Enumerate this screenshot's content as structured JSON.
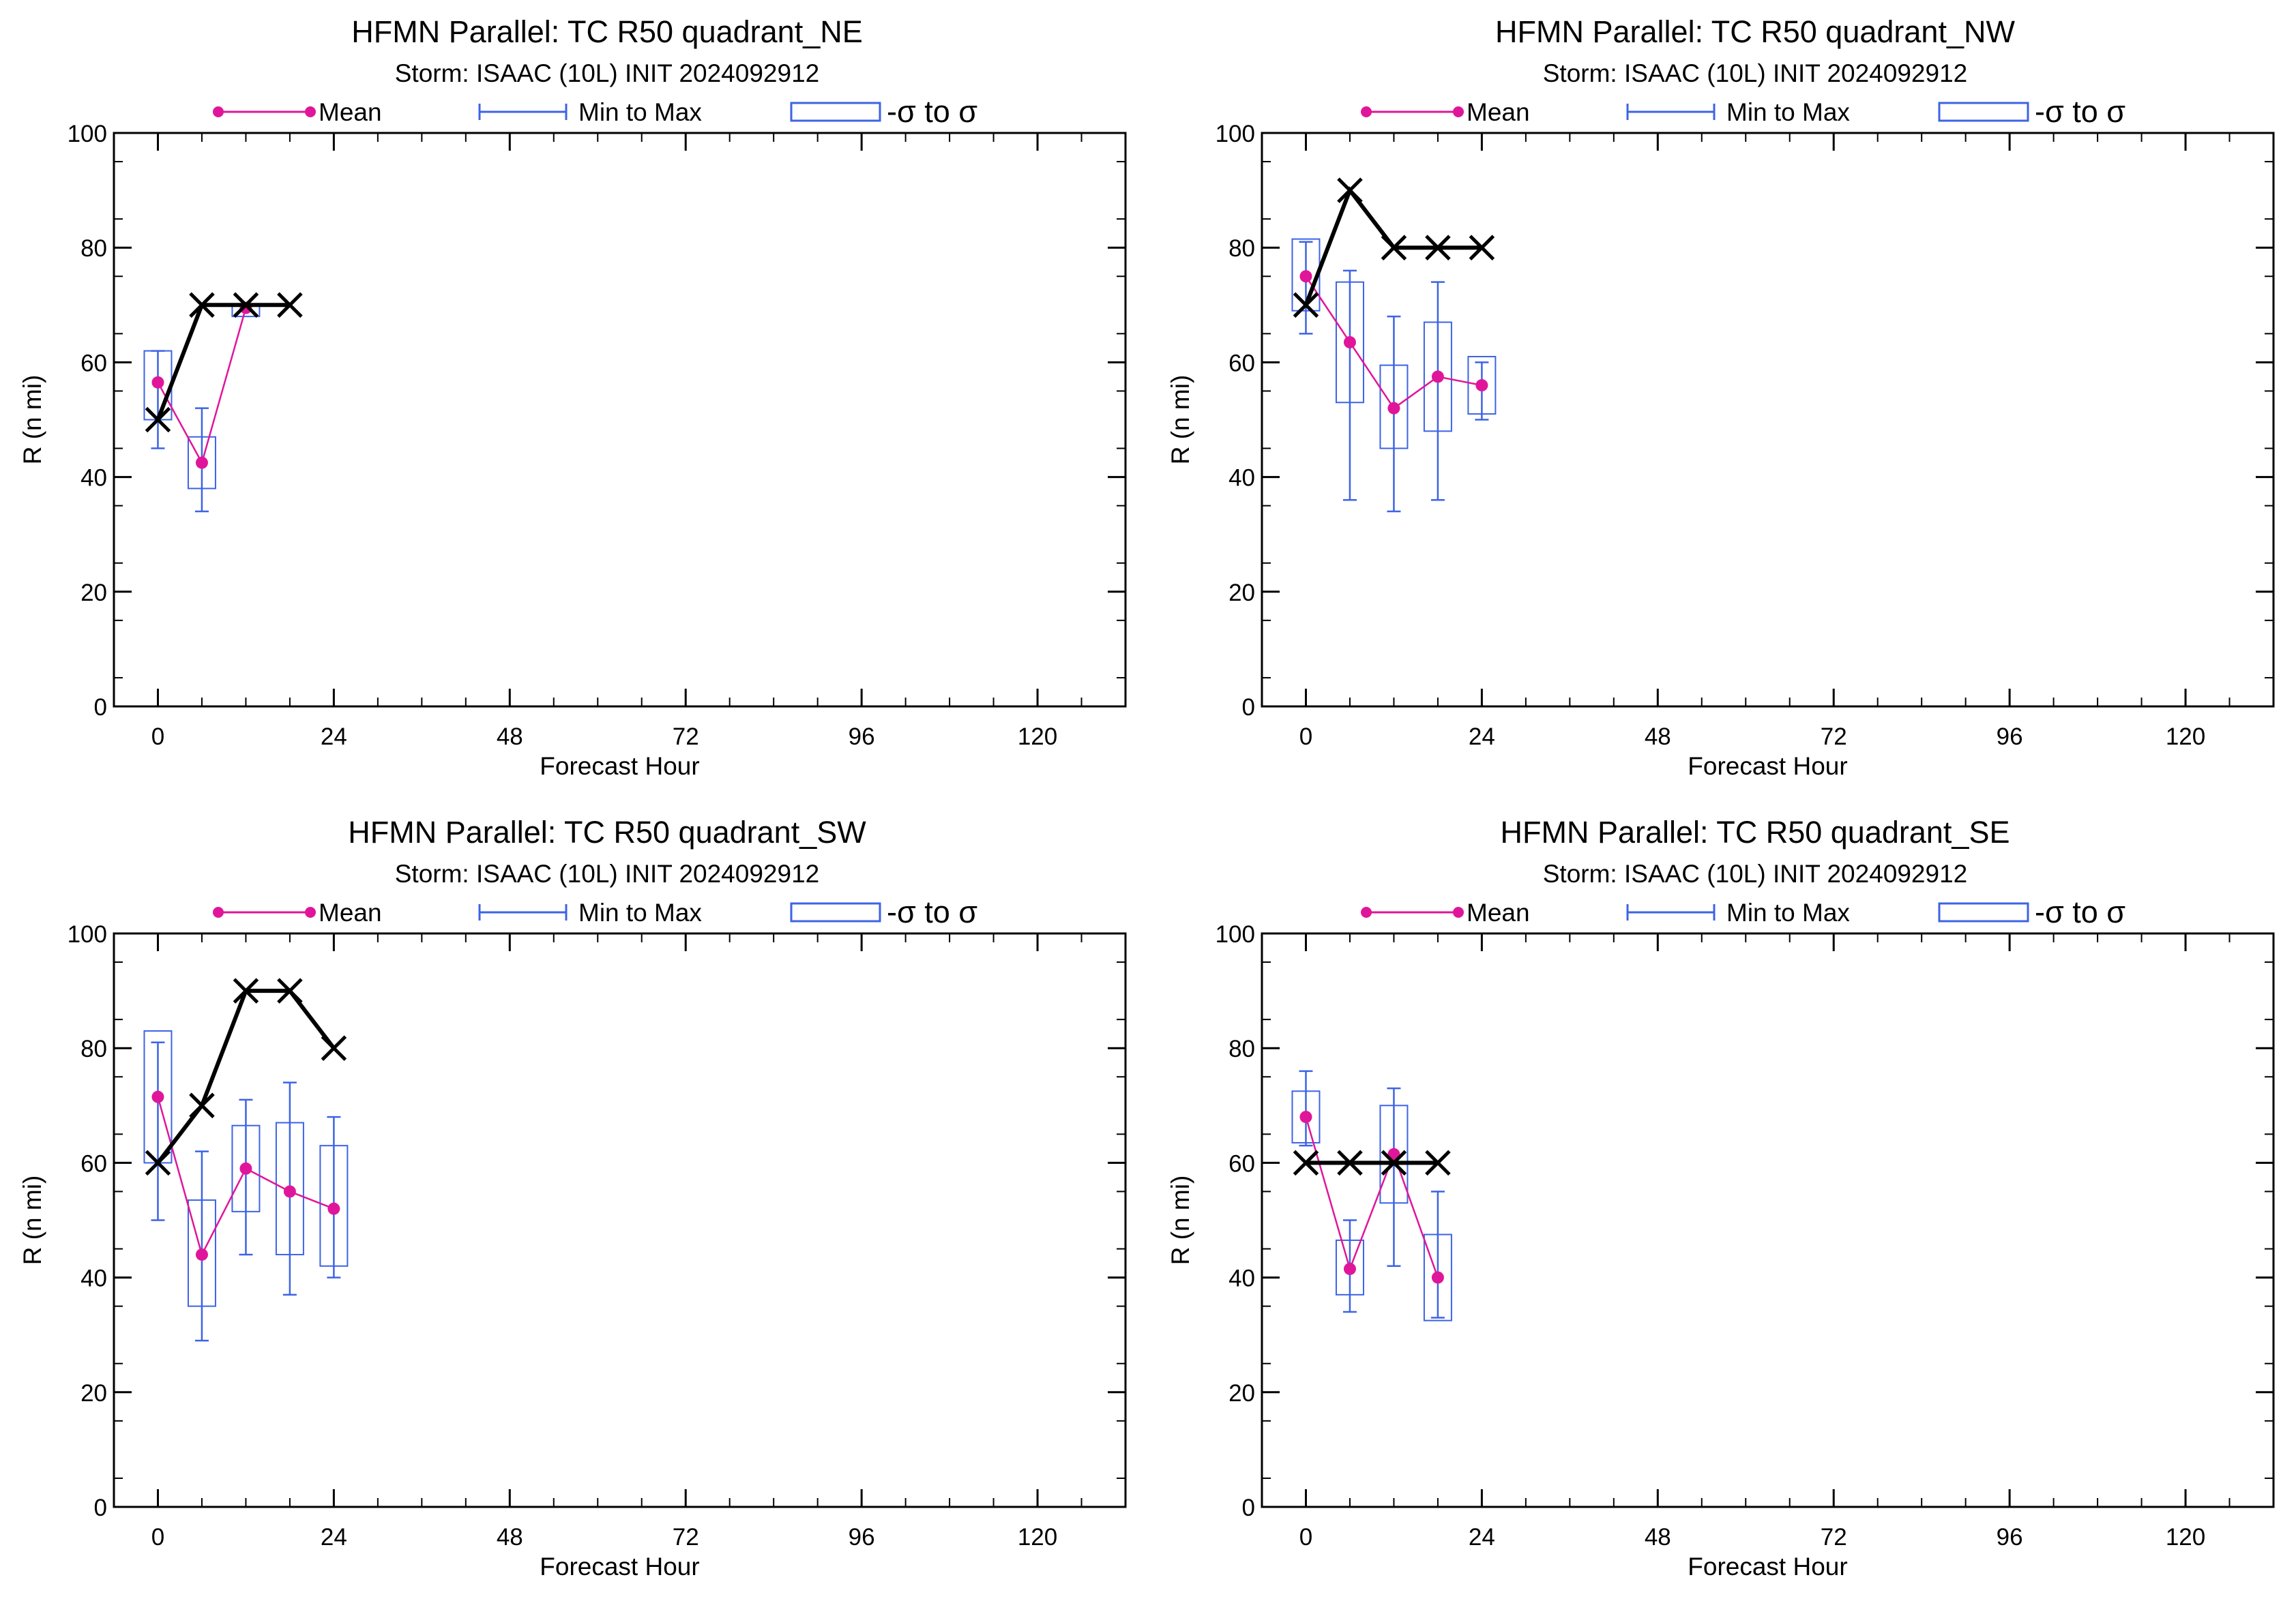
{
  "legend": {
    "mean": "Mean",
    "minmax": "Min to Max",
    "sigma": "-σ to σ",
    "colors": {
      "mean": "#e0169a",
      "minmax": "#3d63e6",
      "sigma": "#3d63e6",
      "observed": "#000000"
    }
  },
  "chart_data": [
    {
      "type": "boxplot",
      "title": "HFMN Parallel: TC  R50 quadrant_NE",
      "subtitle": "Storm: ISAAC (10L) INIT 2024092912",
      "xlabel": "Forecast Hour",
      "ylabel": "R (n mi)",
      "xlim": [
        -6,
        132
      ],
      "ylim": [
        0,
        100
      ],
      "xticks": [
        0,
        24,
        48,
        72,
        96,
        120
      ],
      "yticks": [
        0,
        20,
        40,
        60,
        80,
        100
      ],
      "stats": [
        {
          "hour": 0,
          "mean": 56.5,
          "min": 45,
          "max": 62,
          "sd_low": 50,
          "sd_high": 62
        },
        {
          "hour": 6,
          "mean": 42.5,
          "min": 34,
          "max": 52,
          "sd_low": 38,
          "sd_high": 47
        },
        {
          "hour": 12,
          "mean": 69.5,
          "min": 69,
          "max": 70,
          "sd_low": 68,
          "sd_high": 70
        }
      ],
      "observed": [
        [
          0,
          50
        ],
        [
          6,
          70
        ],
        [
          12,
          70
        ],
        [
          18,
          70
        ]
      ]
    },
    {
      "type": "boxplot",
      "title": "HFMN Parallel: TC  R50 quadrant_NW",
      "subtitle": "Storm: ISAAC (10L) INIT 2024092912",
      "xlabel": "Forecast Hour",
      "ylabel": "R (n mi)",
      "xlim": [
        -6,
        132
      ],
      "ylim": [
        0,
        100
      ],
      "xticks": [
        0,
        24,
        48,
        72,
        96,
        120
      ],
      "yticks": [
        0,
        20,
        40,
        60,
        80,
        100
      ],
      "stats": [
        {
          "hour": 0,
          "mean": 75,
          "min": 65,
          "max": 81,
          "sd_low": 69,
          "sd_high": 81.5
        },
        {
          "hour": 6,
          "mean": 63.5,
          "min": 36,
          "max": 76,
          "sd_low": 53,
          "sd_high": 74
        },
        {
          "hour": 12,
          "mean": 52,
          "min": 34,
          "max": 68,
          "sd_low": 45,
          "sd_high": 59.5
        },
        {
          "hour": 18,
          "mean": 57.5,
          "min": 36,
          "max": 74,
          "sd_low": 48,
          "sd_high": 67
        },
        {
          "hour": 24,
          "mean": 56,
          "min": 50,
          "max": 60,
          "sd_low": 51,
          "sd_high": 61
        }
      ],
      "observed": [
        [
          0,
          70
        ],
        [
          6,
          90
        ],
        [
          12,
          80
        ],
        [
          18,
          80
        ],
        [
          24,
          80
        ]
      ]
    },
    {
      "type": "boxplot",
      "title": "HFMN Parallel: TC  R50 quadrant_SW",
      "subtitle": "Storm: ISAAC (10L) INIT 2024092912",
      "xlabel": "Forecast Hour",
      "ylabel": "R (n mi)",
      "xlim": [
        -6,
        132
      ],
      "ylim": [
        0,
        100
      ],
      "xticks": [
        0,
        24,
        48,
        72,
        96,
        120
      ],
      "yticks": [
        0,
        20,
        40,
        60,
        80,
        100
      ],
      "stats": [
        {
          "hour": 0,
          "mean": 71.5,
          "min": 50,
          "max": 81,
          "sd_low": 60,
          "sd_high": 83
        },
        {
          "hour": 6,
          "mean": 44,
          "min": 29,
          "max": 62,
          "sd_low": 35,
          "sd_high": 53.5
        },
        {
          "hour": 12,
          "mean": 59,
          "min": 44,
          "max": 71,
          "sd_low": 51.5,
          "sd_high": 66.5
        },
        {
          "hour": 18,
          "mean": 55,
          "min": 37,
          "max": 74,
          "sd_low": 44,
          "sd_high": 67
        },
        {
          "hour": 24,
          "mean": 52,
          "min": 40,
          "max": 68,
          "sd_low": 42,
          "sd_high": 63
        }
      ],
      "observed": [
        [
          0,
          60
        ],
        [
          6,
          70
        ],
        [
          12,
          90
        ],
        [
          18,
          90
        ],
        [
          24,
          80
        ]
      ]
    },
    {
      "type": "boxplot",
      "title": "HFMN Parallel: TC  R50 quadrant_SE",
      "subtitle": "Storm: ISAAC (10L) INIT 2024092912",
      "xlabel": "Forecast Hour",
      "ylabel": "R (n mi)",
      "xlim": [
        -6,
        132
      ],
      "ylim": [
        0,
        100
      ],
      "xticks": [
        0,
        24,
        48,
        72,
        96,
        120
      ],
      "yticks": [
        0,
        20,
        40,
        60,
        80,
        100
      ],
      "stats": [
        {
          "hour": 0,
          "mean": 68,
          "min": 63,
          "max": 76,
          "sd_low": 63.5,
          "sd_high": 72.5
        },
        {
          "hour": 6,
          "mean": 41.5,
          "min": 34,
          "max": 50,
          "sd_low": 37,
          "sd_high": 46.5
        },
        {
          "hour": 12,
          "mean": 61.5,
          "min": 42,
          "max": 73,
          "sd_low": 53,
          "sd_high": 70
        },
        {
          "hour": 18,
          "mean": 40,
          "min": 33,
          "max": 55,
          "sd_low": 32.5,
          "sd_high": 47.5
        }
      ],
      "observed": [
        [
          0,
          60
        ],
        [
          6,
          60
        ],
        [
          12,
          60
        ],
        [
          18,
          60
        ]
      ]
    }
  ]
}
